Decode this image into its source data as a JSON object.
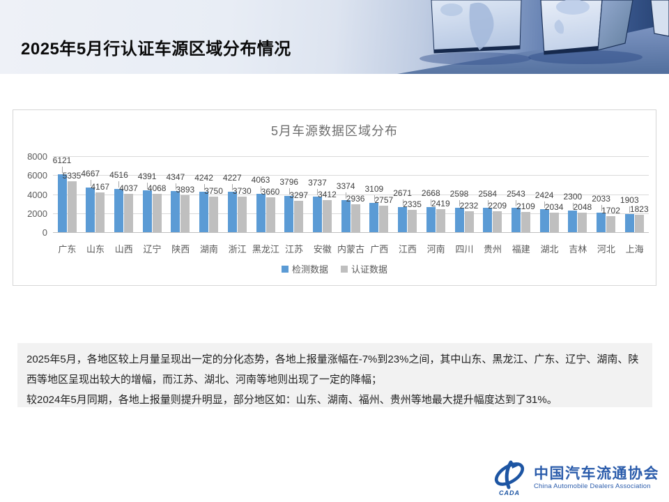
{
  "header": {
    "title": "2025年5月行认证车源区域分布情况"
  },
  "chart_data": {
    "type": "bar",
    "title": "5月车源数据区域分布",
    "categories": [
      "广东",
      "山东",
      "山西",
      "辽宁",
      "陕西",
      "湖南",
      "浙江",
      "黑龙江",
      "江苏",
      "安徽",
      "内蒙古",
      "广西",
      "江西",
      "河南",
      "四川",
      "贵州",
      "福建",
      "湖北",
      "吉林",
      "河北",
      "上海"
    ],
    "series": [
      {
        "name": "检测数据",
        "color": "#5B9BD5",
        "values": [
          6121,
          4667,
          4516,
          4391,
          4347,
          4242,
          4227,
          4063,
          3796,
          3737,
          3374,
          3109,
          2671,
          2668,
          2598,
          2584,
          2543,
          2424,
          2300,
          2033,
          1903
        ]
      },
      {
        "name": "认证数据",
        "color": "#BFBFBF",
        "values": [
          5335,
          4167,
          4037,
          4068,
          3893,
          3750,
          3730,
          3660,
          3297,
          3412,
          2936,
          2757,
          2335,
          2419,
          2232,
          2209,
          2109,
          2034,
          2048,
          1702,
          1823
        ]
      }
    ],
    "xlabel": "",
    "ylabel": "",
    "ylim": [
      0,
      8000
    ],
    "yticks": [
      0,
      2000,
      4000,
      6000,
      8000
    ],
    "grid": true,
    "legend_position": "bottom"
  },
  "summary": {
    "paragraph1": "2025年5月，各地区较上月量呈现出一定的分化态势，各地上报量涨幅在-7%到23%之间，其中山东、黑龙江、广东、辽宁、湖南、陕西等地区呈现出较大的增幅，而江苏、湖北、河南等地则出现了一定的降幅；",
    "paragraph2": "较2024年5月同期，各地上报量则提升明显，部分地区如：山东、湖南、福州、贵州等地最大提升幅度达到了31%。"
  },
  "footer": {
    "org_cn": "中国汽车流通协会",
    "org_en": "China Automobile Dealers Association",
    "logo_acronym": "CADA"
  },
  "colors": {
    "bar_blue": "#5B9BD5",
    "bar_gray": "#BFBFBF",
    "brand_blue": "#2b5cab",
    "summary_bg": "#f2f2f2",
    "axis_text": "#595959",
    "value_text": "#404040"
  }
}
